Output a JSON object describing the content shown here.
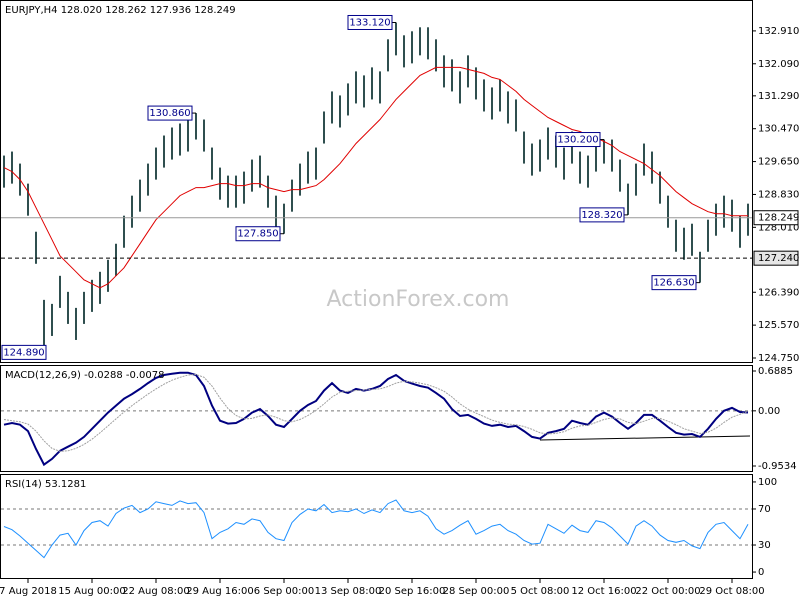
{
  "chart_data": [
    {
      "type": "range",
      "title": "EURJPY,H4  128.020 128.262 127.936 128.249",
      "watermark": "ActionForex.com",
      "color": "#2f4f4f",
      "high": [
        129.8,
        129.9,
        129.6,
        129.1,
        127.9,
        126.2,
        126.1,
        126.8,
        126.4,
        126.0,
        126.4,
        126.7,
        126.9,
        127.2,
        127.6,
        128.3,
        128.8,
        129.2,
        129.6,
        130.0,
        130.3,
        130.5,
        130.6,
        130.7,
        130.86,
        130.7,
        130.0,
        129.5,
        129.3,
        129.3,
        129.4,
        129.7,
        129.8,
        129.3,
        128.8,
        128.6,
        129.2,
        129.6,
        129.9,
        130.0,
        130.9,
        131.4,
        131.3,
        131.6,
        131.9,
        131.8,
        132.0,
        131.9,
        132.7,
        133.12,
        132.8,
        132.9,
        133.0,
        133.0,
        132.7,
        132.3,
        132.2,
        131.9,
        132.3,
        132.0,
        131.7,
        131.5,
        131.7,
        131.4,
        131.2,
        130.4,
        130.1,
        130.2,
        130.5,
        130.3,
        130.0,
        130.4,
        129.9,
        129.8,
        130.2,
        130.2,
        130.2,
        129.7,
        129.1,
        129.6,
        130.1,
        129.9,
        129.4,
        128.8,
        128.2,
        128.0,
        128.1,
        127.4,
        128.2,
        128.6,
        128.8,
        128.7,
        128.3,
        128.6
      ],
      "low": [
        129.0,
        129.1,
        128.8,
        128.3,
        127.1,
        124.89,
        125.3,
        126.0,
        125.6,
        125.2,
        125.6,
        125.9,
        126.1,
        126.4,
        126.8,
        127.5,
        128.0,
        128.4,
        128.8,
        129.2,
        129.5,
        129.7,
        129.8,
        129.9,
        130.2,
        129.9,
        129.2,
        128.7,
        128.5,
        128.5,
        128.6,
        128.9,
        129.0,
        128.5,
        128.0,
        127.85,
        128.4,
        128.8,
        129.1,
        129.2,
        130.1,
        130.6,
        130.5,
        130.8,
        131.1,
        131.0,
        131.2,
        131.1,
        131.9,
        132.3,
        132.0,
        132.1,
        132.3,
        132.2,
        131.9,
        131.5,
        131.4,
        131.1,
        131.5,
        131.2,
        130.9,
        130.7,
        130.9,
        130.6,
        130.4,
        129.6,
        129.3,
        129.4,
        129.7,
        129.5,
        129.2,
        129.6,
        129.1,
        129.0,
        129.4,
        129.6,
        129.4,
        128.9,
        128.32,
        128.8,
        129.3,
        129.1,
        128.6,
        128.0,
        127.4,
        127.2,
        127.3,
        126.63,
        127.4,
        127.8,
        128.0,
        127.9,
        127.5,
        127.8
      ],
      "ma": {
        "color": "#e00000",
        "values": [
          129.5,
          129.4,
          129.2,
          128.9,
          128.5,
          128.1,
          127.7,
          127.3,
          127.1,
          126.9,
          126.7,
          126.6,
          126.5,
          126.6,
          126.8,
          127.0,
          127.3,
          127.6,
          127.9,
          128.2,
          128.4,
          128.6,
          128.8,
          128.9,
          129.0,
          129.0,
          129.05,
          129.1,
          129.1,
          129.05,
          129.05,
          129.1,
          129.1,
          129.0,
          128.95,
          128.9,
          128.95,
          128.95,
          129.0,
          129.05,
          129.2,
          129.4,
          129.6,
          129.85,
          130.1,
          130.3,
          130.5,
          130.7,
          130.95,
          131.2,
          131.4,
          131.6,
          131.8,
          131.9,
          132.0,
          132.0,
          132.0,
          132.0,
          131.95,
          131.9,
          131.85,
          131.75,
          131.7,
          131.55,
          131.4,
          131.2,
          131.05,
          130.9,
          130.75,
          130.65,
          130.55,
          130.45,
          130.4,
          130.3,
          130.25,
          130.15,
          130.05,
          129.9,
          129.8,
          129.7,
          129.6,
          129.45,
          129.3,
          129.1,
          128.9,
          128.75,
          128.6,
          128.5,
          128.4,
          128.35,
          128.35,
          128.3,
          128.3,
          128.3
        ]
      },
      "ylim": [
        124.65,
        133.656
      ],
      "yticks": [
        {
          "value": 124.75,
          "label": "124.750"
        },
        {
          "value": 125.57,
          "label": "125.570"
        },
        {
          "value": 126.39,
          "label": "126.390"
        },
        {
          "value": 128.01,
          "label": "128.010"
        },
        {
          "value": 128.83,
          "label": "128.830"
        },
        {
          "value": 129.65,
          "label": "129.650"
        },
        {
          "value": 130.47,
          "label": "130.470"
        },
        {
          "value": 131.29,
          "label": "131.290"
        },
        {
          "value": 132.09,
          "label": "132.090"
        },
        {
          "value": 132.91,
          "label": "132.910"
        }
      ],
      "last_price": {
        "value": 128.249,
        "label": "128.249"
      },
      "level": {
        "value": 127.24,
        "label": "127.240"
      },
      "annotations": [
        {
          "at": 5,
          "value": 124.89,
          "label": "124.890"
        },
        {
          "at": 24,
          "value": 130.86,
          "label": "130.860"
        },
        {
          "at": 35,
          "value": 127.85,
          "label": "127.850"
        },
        {
          "at": 49,
          "value": 133.12,
          "label": "133.120"
        },
        {
          "at": 75,
          "value": 130.2,
          "label": "130.200"
        },
        {
          "at": 78,
          "value": 128.32,
          "label": "128.320"
        },
        {
          "at": 87,
          "value": 126.63,
          "label": "126.630"
        }
      ]
    },
    {
      "type": "line",
      "title": "MACD(12,26,9) -0.0288 -0.0078",
      "series": [
        {
          "color": "#000080",
          "values": [
            -0.24,
            -0.21,
            -0.24,
            -0.35,
            -0.66,
            -0.93,
            -0.83,
            -0.69,
            -0.62,
            -0.55,
            -0.45,
            -0.31,
            -0.17,
            -0.03,
            0.09,
            0.21,
            0.29,
            0.38,
            0.48,
            0.57,
            0.62,
            0.64,
            0.66,
            0.66,
            0.62,
            0.43,
            0.09,
            -0.17,
            -0.22,
            -0.21,
            -0.14,
            -0.03,
            0.03,
            -0.09,
            -0.24,
            -0.28,
            -0.14,
            0.0,
            0.1,
            0.17,
            0.35,
            0.48,
            0.35,
            0.31,
            0.38,
            0.35,
            0.38,
            0.43,
            0.55,
            0.62,
            0.52,
            0.47,
            0.43,
            0.4,
            0.31,
            0.21,
            0.03,
            -0.09,
            -0.07,
            -0.14,
            -0.22,
            -0.26,
            -0.24,
            -0.28,
            -0.26,
            -0.35,
            -0.45,
            -0.48,
            -0.38,
            -0.35,
            -0.31,
            -0.17,
            -0.21,
            -0.24,
            -0.1,
            -0.03,
            -0.1,
            -0.21,
            -0.31,
            -0.21,
            -0.07,
            -0.07,
            -0.17,
            -0.28,
            -0.38,
            -0.41,
            -0.4,
            -0.45,
            -0.31,
            -0.14,
            0.0,
            0.05,
            -0.02,
            -0.0288
          ]
        },
        {
          "color": "#a0a0a0",
          "values": [
            -0.15,
            -0.17,
            -0.19,
            -0.23,
            -0.35,
            -0.52,
            -0.65,
            -0.7,
            -0.69,
            -0.65,
            -0.58,
            -0.49,
            -0.38,
            -0.26,
            -0.14,
            -0.02,
            0.09,
            0.19,
            0.29,
            0.38,
            0.46,
            0.53,
            0.58,
            0.62,
            0.63,
            0.58,
            0.43,
            0.22,
            0.04,
            -0.08,
            -0.14,
            -0.13,
            -0.09,
            -0.07,
            -0.11,
            -0.17,
            -0.19,
            -0.15,
            -0.08,
            0.01,
            0.12,
            0.24,
            0.32,
            0.34,
            0.35,
            0.36,
            0.37,
            0.38,
            0.42,
            0.48,
            0.51,
            0.5,
            0.48,
            0.45,
            0.4,
            0.34,
            0.24,
            0.12,
            0.03,
            -0.04,
            -0.1,
            -0.16,
            -0.2,
            -0.23,
            -0.24,
            -0.27,
            -0.32,
            -0.38,
            -0.4,
            -0.39,
            -0.36,
            -0.3,
            -0.26,
            -0.25,
            -0.2,
            -0.15,
            -0.12,
            -0.14,
            -0.2,
            -0.22,
            -0.18,
            -0.13,
            -0.13,
            -0.18,
            -0.24,
            -0.31,
            -0.35,
            -0.39,
            -0.37,
            -0.3,
            -0.2,
            -0.11,
            -0.06,
            -0.0078
          ]
        }
      ],
      "ylim": [
        -1.04,
        0.775
      ],
      "yticks": [
        -0.9534,
        {
          "value": 0,
          "label": "0.00"
        },
        0.6885
      ],
      "levels": [
        0
      ]
    },
    {
      "type": "line",
      "title": "RSI(14) 53.1281",
      "series": [
        {
          "color": "#1e90ff",
          "values": [
            50.5,
            47,
            40,
            32,
            24,
            16,
            30,
            41,
            43,
            30,
            46,
            55,
            57,
            51,
            65,
            71,
            74,
            66,
            70,
            78,
            76,
            74,
            79,
            76,
            77,
            66,
            37,
            44,
            48,
            55,
            53,
            59,
            57,
            44,
            37,
            35,
            55,
            64,
            70,
            68,
            75,
            66,
            68,
            67,
            70,
            65,
            69,
            66,
            76,
            80,
            68,
            66,
            68,
            62,
            48,
            42,
            46,
            52,
            57,
            42,
            46,
            51,
            53,
            46,
            42,
            35,
            31,
            32,
            53,
            48,
            43,
            52,
            46,
            44,
            57,
            55,
            49,
            40,
            31,
            51,
            57,
            51,
            41,
            35,
            33,
            35,
            29,
            26,
            44,
            53,
            55,
            46,
            37,
            53.1281
          ]
        }
      ],
      "ylim": [
        -6.6,
        107.7
      ],
      "yticks": [
        0,
        30,
        70,
        100
      ],
      "levels": [
        70,
        30
      ],
      "categories": [
        null,
        null,
        null,
        "7 Aug 2018",
        null,
        null,
        null,
        null,
        null,
        null,
        null,
        "15 Aug 00:00",
        null,
        null,
        null,
        null,
        null,
        null,
        null,
        "22 Aug 08:00",
        null,
        null,
        null,
        null,
        null,
        null,
        null,
        "29 Aug 16:00",
        null,
        null,
        null,
        null,
        null,
        null,
        null,
        "6 Sep 00:00",
        null,
        null,
        null,
        null,
        null,
        null,
        null,
        "13 Sep 08:00",
        null,
        null,
        null,
        null,
        null,
        null,
        null,
        "20 Sep 16:00",
        null,
        null,
        null,
        null,
        null,
        null,
        null,
        "28 Sep 00:00",
        null,
        null,
        null,
        null,
        null,
        null,
        null,
        "5 Oct 08:00",
        null,
        null,
        null,
        null,
        null,
        null,
        null,
        "12 Oct 16:00",
        null,
        null,
        null,
        null,
        null,
        null,
        null,
        "22 Oct 00:00",
        null,
        null,
        null,
        null,
        null,
        null,
        null,
        "29 Oct 08:00",
        null,
        null
      ]
    }
  ]
}
